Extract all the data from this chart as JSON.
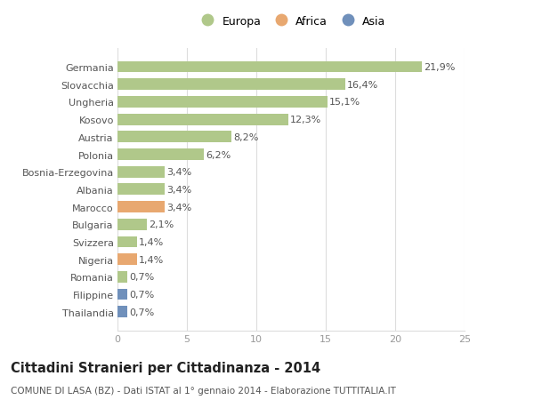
{
  "categories": [
    "Thailandia",
    "Filippine",
    "Romania",
    "Nigeria",
    "Svizzera",
    "Bulgaria",
    "Marocco",
    "Albania",
    "Bosnia-Erzegovina",
    "Polonia",
    "Austria",
    "Kosovo",
    "Ungheria",
    "Slovacchia",
    "Germania"
  ],
  "values": [
    0.7,
    0.7,
    0.7,
    1.4,
    1.4,
    2.1,
    3.4,
    3.4,
    3.4,
    6.2,
    8.2,
    12.3,
    15.1,
    16.4,
    21.9
  ],
  "labels": [
    "0,7%",
    "0,7%",
    "0,7%",
    "1,4%",
    "1,4%",
    "2,1%",
    "3,4%",
    "3,4%",
    "3,4%",
    "6,2%",
    "8,2%",
    "12,3%",
    "15,1%",
    "16,4%",
    "21,9%"
  ],
  "colors": [
    "#7090bb",
    "#7090bb",
    "#b0c88a",
    "#e8a870",
    "#b0c88a",
    "#b0c88a",
    "#e8a870",
    "#b0c88a",
    "#b0c88a",
    "#b0c88a",
    "#b0c88a",
    "#b0c88a",
    "#b0c88a",
    "#b0c88a",
    "#b0c88a"
  ],
  "legend_labels": [
    "Europa",
    "Africa",
    "Asia"
  ],
  "legend_colors": [
    "#b0c88a",
    "#e8a870",
    "#7090bb"
  ],
  "title": "Cittadini Stranieri per Cittadinanza - 2014",
  "subtitle": "COMUNE DI LASA (BZ) - Dati ISTAT al 1° gennaio 2014 - Elaborazione TUTTITALIA.IT",
  "xlim": [
    0,
    25
  ],
  "xticks": [
    0,
    5,
    10,
    15,
    20,
    25
  ],
  "bg_color": "#ffffff",
  "grid_color": "#dddddd",
  "bar_height": 0.65,
  "label_fontsize": 8.0,
  "tick_fontsize": 8.0,
  "title_fontsize": 10.5,
  "subtitle_fontsize": 7.5
}
